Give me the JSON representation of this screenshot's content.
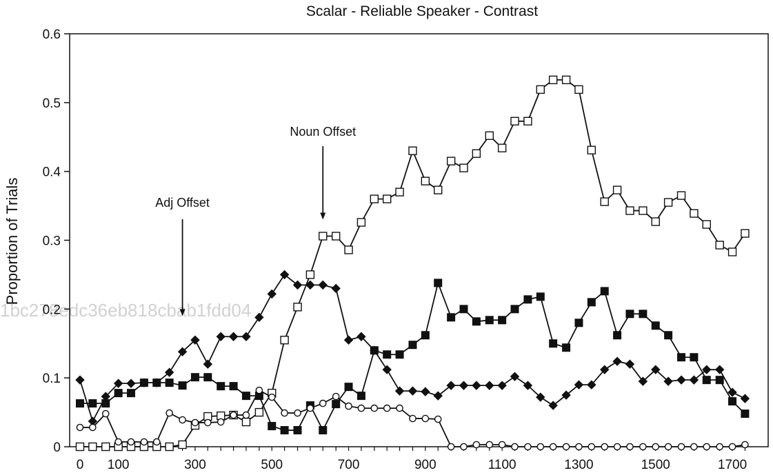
{
  "chart_data": {
    "type": "line",
    "title": "Scalar - Reliable Speaker - Contrast",
    "ylabel": "Proportion of Trials",
    "xlabel": "",
    "xlim": [
      0,
      1733
    ],
    "ylim": [
      0,
      0.6
    ],
    "x_ticks": [
      0,
      100,
      300,
      500,
      700,
      900,
      1100,
      1300,
      1500,
      1700
    ],
    "y_ticks": [
      0,
      0.1,
      0.2,
      0.3,
      0.4,
      0.5,
      0.6
    ],
    "y_tick_labels": [
      "0",
      "0.1",
      "0.2",
      "0.3",
      "0.4",
      "0.5",
      "0.6"
    ],
    "grid": false,
    "x": [
      0,
      33,
      67,
      100,
      133,
      167,
      200,
      233,
      267,
      300,
      333,
      367,
      400,
      433,
      467,
      500,
      533,
      567,
      600,
      633,
      667,
      700,
      733,
      767,
      800,
      833,
      867,
      900,
      933,
      967,
      1000,
      1033,
      1067,
      1100,
      1133,
      1167,
      1200,
      1233,
      1267,
      1300,
      1333,
      1367,
      1400,
      1433,
      1467,
      1500,
      1533,
      1567,
      1600,
      1633,
      1667,
      1700,
      1733
    ],
    "series": [
      {
        "marker": "filled-diamond",
        "color": "#111111",
        "values": [
          0.097,
          0.037,
          0.073,
          0.092,
          0.092,
          0.093,
          0.093,
          0.108,
          0.138,
          0.155,
          0.12,
          0.16,
          0.16,
          0.16,
          0.188,
          0.222,
          0.25,
          0.235,
          0.235,
          0.235,
          0.23,
          0.155,
          0.16,
          0.14,
          0.112,
          0.081,
          0.081,
          0.08,
          0.074,
          0.089,
          0.089,
          0.089,
          0.089,
          0.089,
          0.102,
          0.089,
          0.072,
          0.06,
          0.075,
          0.09,
          0.09,
          0.112,
          0.124,
          0.12,
          0.095,
          0.112,
          0.095,
          0.097,
          0.097,
          0.112,
          0.112,
          0.079,
          0.07
        ]
      },
      {
        "marker": "filled-square",
        "color": "#111111",
        "values": [
          0.063,
          0.063,
          0.063,
          0.078,
          0.078,
          0.093,
          0.093,
          0.093,
          0.089,
          0.101,
          0.101,
          0.088,
          0.088,
          0.074,
          0.074,
          0.03,
          0.024,
          0.024,
          0.06,
          0.024,
          0.062,
          0.087,
          0.074,
          0.14,
          0.134,
          0.134,
          0.148,
          0.162,
          0.238,
          0.188,
          0.2,
          0.182,
          0.184,
          0.184,
          0.2,
          0.214,
          0.218,
          0.15,
          0.144,
          0.18,
          0.21,
          0.226,
          0.162,
          0.193,
          0.193,
          0.176,
          0.162,
          0.13,
          0.13,
          0.097,
          0.097,
          0.066,
          0.048
        ]
      },
      {
        "marker": "open-square",
        "color": "#111111",
        "values": [
          0,
          0,
          0,
          0,
          0,
          0,
          0,
          0,
          0.003,
          0.031,
          0.044,
          0.045,
          0.046,
          0.036,
          0.05,
          0.078,
          0.155,
          0.203,
          0.25,
          0.306,
          0.306,
          0.286,
          0.326,
          0.36,
          0.36,
          0.37,
          0.43,
          0.386,
          0.373,
          0.415,
          0.405,
          0.426,
          0.452,
          0.434,
          0.473,
          0.473,
          0.519,
          0.533,
          0.533,
          0.519,
          0.431,
          0.356,
          0.373,
          0.343,
          0.343,
          0.327,
          0.355,
          0.365,
          0.339,
          0.323,
          0.293,
          0.283,
          0.31
        ]
      },
      {
        "marker": "open-circle",
        "color": "#111111",
        "values": [
          0.028,
          0.028,
          0.048,
          0.007,
          0.007,
          0.007,
          0.007,
          0.049,
          0.039,
          0.035,
          0.035,
          0.036,
          0.046,
          0.046,
          0.082,
          0.072,
          0.049,
          0.049,
          0.056,
          0.063,
          0.073,
          0.059,
          0.056,
          0.056,
          0.056,
          0.056,
          0.041,
          0.041,
          0.04,
          0,
          0,
          0.003,
          0.003,
          0.003,
          0,
          0,
          0,
          0,
          0,
          0,
          0,
          0,
          0,
          0,
          0,
          0,
          0,
          0,
          0,
          0,
          0,
          0,
          0.003
        ]
      }
    ],
    "annotations": [
      {
        "text": "Adj Offset",
        "arrow_x": 267,
        "arrow_y": 0.19
      },
      {
        "text": "Noun Offset",
        "arrow_x": 633,
        "arrow_y": 0.33
      }
    ],
    "watermark": "1bc278edc36eb818cbab1fdd04"
  }
}
